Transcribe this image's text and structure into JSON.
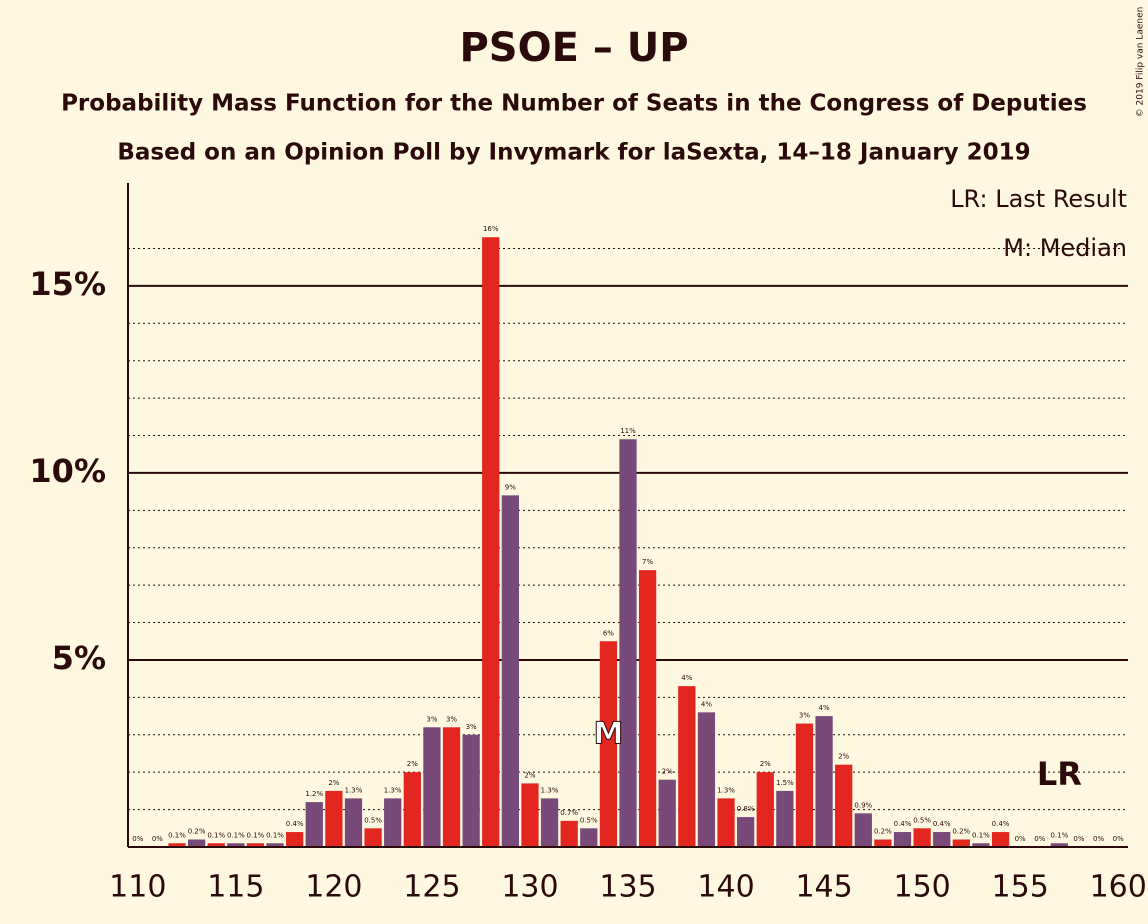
{
  "chart_data": {
    "type": "bar",
    "title": "PSOE – UP",
    "subtitle": "Probability Mass Function for the Number of Seats in the Congress of Deputies",
    "subtitle2": "Based on an Opinion Poll by Invymark for laSexta, 14–18 January 2019",
    "copyright": "© 2019 Filip van Laenen",
    "legend": [
      "LR: Last Result",
      "M: Median"
    ],
    "x": [
      110,
      111,
      112,
      113,
      114,
      115,
      116,
      117,
      118,
      119,
      120,
      121,
      122,
      123,
      124,
      125,
      126,
      127,
      128,
      129,
      130,
      131,
      132,
      133,
      134,
      135,
      136,
      137,
      138,
      139,
      140,
      141,
      142,
      143,
      144,
      145,
      146,
      147,
      148,
      149,
      150,
      151,
      152,
      153,
      154,
      155,
      156,
      157,
      158,
      159,
      160
    ],
    "values": [
      0,
      0,
      0.1,
      0.2,
      0.1,
      0.1,
      0.1,
      0.1,
      0.4,
      1.2,
      1.5,
      1.3,
      0.5,
      1.3,
      2.0,
      3.2,
      3.2,
      3.0,
      16.3,
      9.4,
      1.7,
      1.3,
      0.7,
      0.5,
      5.5,
      10.9,
      7.4,
      1.8,
      4.3,
      3.6,
      1.3,
      0.8,
      2.0,
      1.5,
      3.3,
      3.5,
      2.2,
      0.9,
      0.2,
      0.4,
      0.5,
      0.4,
      0.2,
      0.1,
      0.4,
      0,
      0,
      0.1,
      0,
      0,
      0
    ],
    "value_labels": [
      "0%",
      "0%",
      "0.1%",
      "0.2%",
      "0.1%",
      "0.1%",
      "0.1%",
      "0.1%",
      "0.4%",
      "1.2%",
      "2%",
      "1.3%",
      "0.5%",
      "1.3%",
      "2%",
      "3%",
      "3%",
      "3%",
      "16%",
      "9%",
      "2%",
      "1.3%",
      "0.7%",
      "0.5%",
      "6%",
      "11%",
      "7%",
      "2%",
      "4%",
      "4%",
      "1.3%",
      "0.8%",
      "2%",
      "1.5%",
      "3%",
      "4%",
      "2%",
      "0.9%",
      "0.2%",
      "0.4%",
      "0.5%",
      "0.4%",
      "0.2%",
      "0.1%",
      "0.4%",
      "0%",
      "0%",
      "0.1%",
      "0%",
      "0%",
      "0%"
    ],
    "colors": [
      "#e3261f",
      "#774a7a"
    ],
    "median": 134,
    "median_label": "M",
    "last_result": 157,
    "last_result_label": "LR",
    "xlim": [
      109.5,
      160.5
    ],
    "xticks": [
      110,
      115,
      120,
      125,
      130,
      135,
      140,
      145,
      150,
      155,
      160
    ],
    "ylim": [
      0,
      17.75
    ],
    "yticks": [
      {
        "value": 5,
        "label": "5%"
      },
      {
        "value": 10,
        "label": "10%"
      },
      {
        "value": 15,
        "label": "15%"
      }
    ],
    "minor_yticks": [
      1,
      2,
      3,
      4,
      6,
      7,
      8,
      9,
      11,
      12,
      13,
      14,
      16
    ],
    "grid": true
  }
}
